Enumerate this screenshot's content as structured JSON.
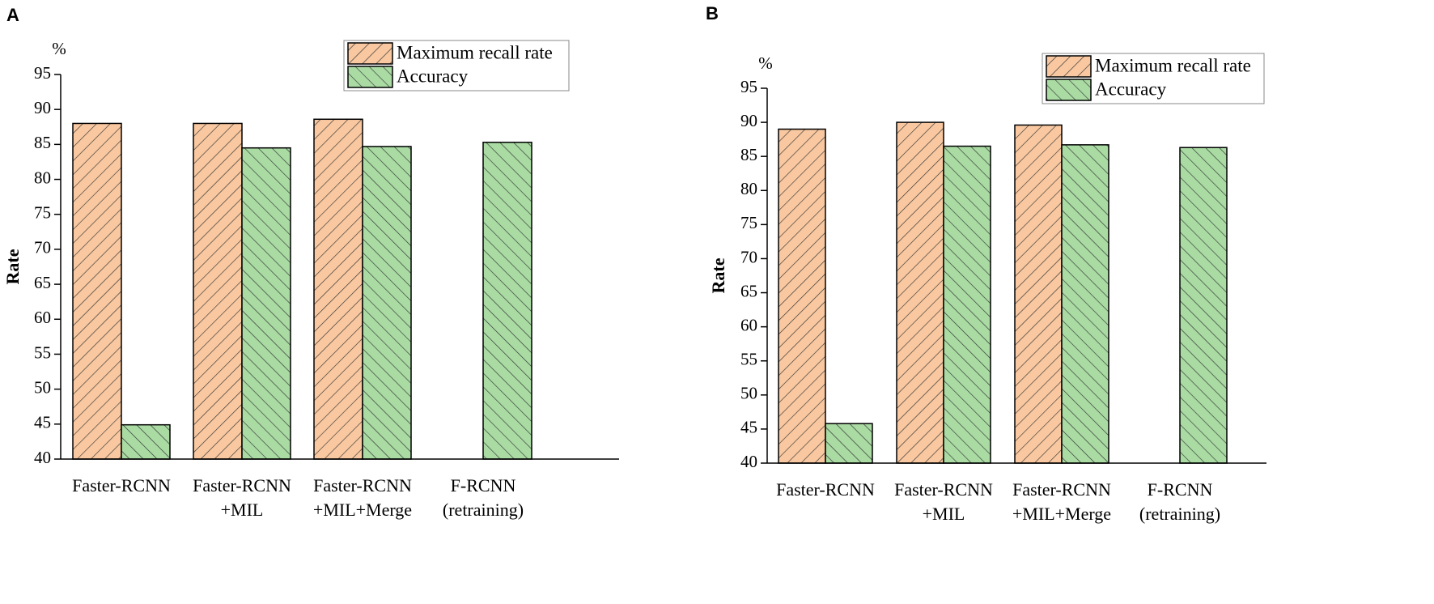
{
  "chart_data": [
    {
      "type": "bar",
      "panel_label": "A",
      "unit": "%",
      "y_label": "Rate",
      "categories": [
        [
          "Faster-RCNN"
        ],
        [
          "Faster-RCNN",
          "+MIL"
        ],
        [
          "Faster-RCNN",
          "+MIL+Merge"
        ],
        [
          "F-RCNN",
          "(retraining)"
        ]
      ],
      "series": [
        {
          "name": "Maximum recall rate",
          "color": "#f9c8a0",
          "hatch": "/",
          "values": [
            88,
            88,
            88.6,
            null
          ]
        },
        {
          "name": "Accuracy",
          "color": "#a9dba3",
          "hatch": "\\",
          "values": [
            44.9,
            84.5,
            84.7,
            85.3
          ]
        }
      ],
      "ylim": [
        40,
        95
      ],
      "yticks": [
        40,
        45,
        50,
        55,
        60,
        65,
        70,
        75,
        80,
        85,
        90,
        95
      ]
    },
    {
      "type": "bar",
      "panel_label": "B",
      "unit": "%",
      "y_label": "Rate",
      "categories": [
        [
          "Faster-RCNN"
        ],
        [
          "Faster-RCNN",
          "+MIL"
        ],
        [
          "Faster-RCNN",
          "+MIL+Merge"
        ],
        [
          "F-RCNN",
          "(retraining)"
        ]
      ],
      "series": [
        {
          "name": "Maximum recall rate",
          "color": "#f9c8a0",
          "hatch": "/",
          "values": [
            89,
            90,
            89.6,
            null
          ]
        },
        {
          "name": "Accuracy",
          "color": "#a9dba3",
          "hatch": "\\",
          "values": [
            45.8,
            86.5,
            86.7,
            86.3
          ]
        }
      ],
      "ylim": [
        40,
        95
      ],
      "yticks": [
        40,
        45,
        50,
        55,
        60,
        65,
        70,
        75,
        80,
        85,
        90,
        95
      ]
    }
  ]
}
